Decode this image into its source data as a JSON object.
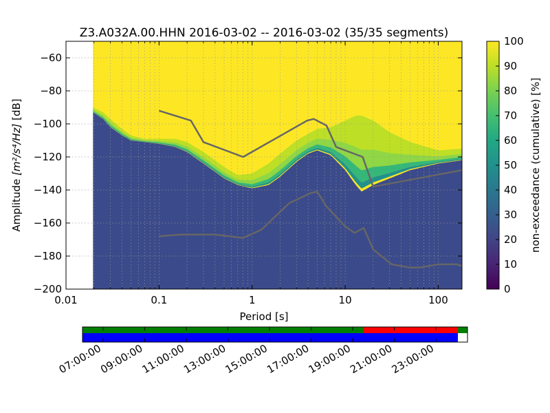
{
  "chart_data": {
    "type": "heatmap",
    "title": "Z3.A032A.00.HHN   2016-03-02 -- 2016-03-02  (35/35 segments)",
    "xlabel": "Period [s]",
    "ylabel_prefix": "Amplitude ",
    "ylabel_units": "[m²/s⁴/Hz]",
    "ylabel_suffix": " [dB]",
    "xscale": "log",
    "xlim": [
      0.01,
      180
    ],
    "ylim": [
      -200,
      -50
    ],
    "grid": true,
    "x_ticks": [
      {
        "value": 0.01,
        "label": "0.01"
      },
      {
        "value": 0.1,
        "label": "0.1"
      },
      {
        "value": 1,
        "label": "1"
      },
      {
        "value": 10,
        "label": "10"
      },
      {
        "value": 100,
        "label": "100"
      }
    ],
    "y_ticks": [
      {
        "value": -60,
        "label": "−60"
      },
      {
        "value": -80,
        "label": "−80"
      },
      {
        "value": -100,
        "label": "−100"
      },
      {
        "value": -120,
        "label": "−120"
      },
      {
        "value": -140,
        "label": "−140"
      },
      {
        "value": -160,
        "label": "−160"
      },
      {
        "value": -180,
        "label": "−180"
      },
      {
        "value": -200,
        "label": "−200"
      }
    ],
    "data_period_start": 0.0195,
    "colorbar": {
      "label": "non-exceedance (cumulative) [%]",
      "range": [
        0,
        100
      ],
      "colormap": "viridis",
      "ticks": [
        {
          "value": 0,
          "label": "0"
        },
        {
          "value": 10,
          "label": "10"
        },
        {
          "value": 20,
          "label": "20"
        },
        {
          "value": 30,
          "label": "30"
        },
        {
          "value": 40,
          "label": "40"
        },
        {
          "value": 50,
          "label": "50"
        },
        {
          "value": 60,
          "label": "60"
        },
        {
          "value": 70,
          "label": "70"
        },
        {
          "value": 80,
          "label": "80"
        },
        {
          "value": 90,
          "label": "90"
        },
        {
          "value": 100,
          "label": "100"
        }
      ]
    },
    "colors": {
      "low_fill": "#3b4a8a",
      "high_fill": "#fde725",
      "mid_1": "#bddf26",
      "mid_2": "#8fd744",
      "mid_3": "#35b779",
      "mid_4": "#21918c",
      "noise_model": "#666666"
    },
    "distribution": {
      "lower_edge": [
        [
          0.0195,
          -93
        ],
        [
          0.025,
          -97
        ],
        [
          0.03,
          -102
        ],
        [
          0.04,
          -107
        ],
        [
          0.05,
          -110
        ],
        [
          0.07,
          -111
        ],
        [
          0.1,
          -112
        ],
        [
          0.15,
          -114
        ],
        [
          0.2,
          -117
        ],
        [
          0.3,
          -124
        ],
        [
          0.5,
          -133
        ],
        [
          0.7,
          -137
        ],
        [
          1,
          -139
        ],
        [
          1.5,
          -137
        ],
        [
          2,
          -132
        ],
        [
          3,
          -123
        ],
        [
          4,
          -118
        ],
        [
          5,
          -116
        ],
        [
          7,
          -119
        ],
        [
          10,
          -128
        ],
        [
          13,
          -137
        ],
        [
          15,
          -141
        ],
        [
          20,
          -137
        ],
        [
          30,
          -133
        ],
        [
          50,
          -128
        ],
        [
          100,
          -124
        ],
        [
          180,
          -122
        ]
      ],
      "upper_edge": [
        [
          0.0195,
          -90
        ],
        [
          0.025,
          -93
        ],
        [
          0.03,
          -97
        ],
        [
          0.04,
          -103
        ],
        [
          0.05,
          -107
        ],
        [
          0.07,
          -109
        ],
        [
          0.1,
          -109
        ],
        [
          0.15,
          -109
        ],
        [
          0.2,
          -111
        ],
        [
          0.3,
          -117
        ],
        [
          0.5,
          -126
        ],
        [
          0.7,
          -131
        ],
        [
          1,
          -130
        ],
        [
          1.5,
          -124
        ],
        [
          2,
          -118
        ],
        [
          3,
          -110
        ],
        [
          4,
          -106
        ],
        [
          5,
          -103
        ],
        [
          7,
          -102
        ],
        [
          10,
          -98
        ],
        [
          13,
          -95
        ],
        [
          15,
          -95
        ],
        [
          20,
          -98
        ],
        [
          30,
          -105
        ],
        [
          50,
          -111
        ],
        [
          100,
          -116
        ],
        [
          180,
          -115
        ]
      ]
    },
    "series": [
      {
        "values": [
          [
            0.1,
            -92
          ],
          [
            0.22,
            -98
          ],
          [
            0.3,
            -111
          ],
          [
            0.8,
            -120
          ],
          [
            1.9,
            -108
          ],
          [
            3.9,
            -98
          ],
          [
            4.6,
            -97
          ],
          [
            6.3,
            -101
          ],
          [
            8,
            -114
          ],
          [
            15.4,
            -120
          ],
          [
            20,
            -138
          ],
          [
            180,
            -128
          ]
        ]
      },
      {
        "values": [
          [
            0.1,
            -168
          ],
          [
            0.17,
            -167
          ],
          [
            0.4,
            -167
          ],
          [
            0.8,
            -169
          ],
          [
            1.26,
            -164
          ],
          [
            2.5,
            -148
          ],
          [
            4.2,
            -142
          ],
          [
            5,
            -141
          ],
          [
            6.3,
            -150
          ],
          [
            10,
            -162
          ],
          [
            12.6,
            -166
          ],
          [
            15.8,
            -163
          ],
          [
            20,
            -176
          ],
          [
            31.6,
            -185
          ],
          [
            50,
            -187
          ],
          [
            63,
            -187
          ],
          [
            100,
            -185
          ],
          [
            158,
            -185
          ],
          [
            180,
            -186
          ]
        ]
      }
    ]
  },
  "timeline": {
    "tick_labels": [
      "07:00:00",
      "09:00:00",
      "11:00:00",
      "13:00:00",
      "15:00:00",
      "17:00:00",
      "19:00:00",
      "21:00:00",
      "23:00:00"
    ],
    "colors": {
      "ok": "#008000",
      "gap": "#ff0000",
      "data": "#0000ff",
      "empty": "#ffffff"
    }
  }
}
